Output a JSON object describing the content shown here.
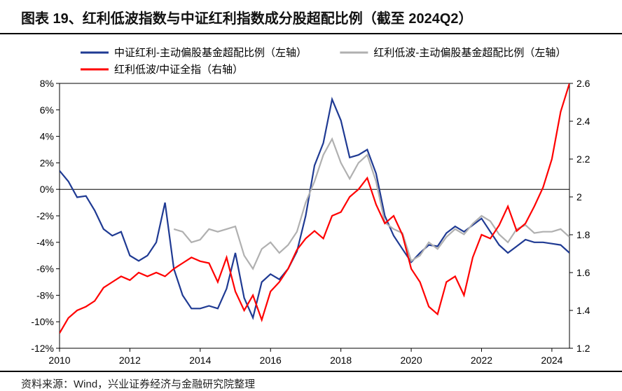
{
  "title": "图表 19、红利低波指数与中证红利指数成分股超配比例（截至 2024Q2）",
  "source": "资料来源：Wind，兴业证券经济与金融研究院整理",
  "chart": {
    "type": "line",
    "background_color": "#ffffff",
    "border_color": "#000000",
    "series": [
      {
        "name": "中证红利-主动偏股基金超配比例（左轴）",
        "color": "#1f3a93",
        "axis": "left",
        "width": 2.2,
        "data": [
          [
            2010.0,
            1.4
          ],
          [
            2010.25,
            0.6
          ],
          [
            2010.5,
            -0.6
          ],
          [
            2010.75,
            -0.5
          ],
          [
            2011.0,
            -1.6
          ],
          [
            2011.25,
            -3.0
          ],
          [
            2011.5,
            -3.5
          ],
          [
            2011.75,
            -3.2
          ],
          [
            2012.0,
            -5.0
          ],
          [
            2012.25,
            -5.4
          ],
          [
            2012.5,
            -5.0
          ],
          [
            2012.75,
            -4.0
          ],
          [
            2013.0,
            -1.0
          ],
          [
            2013.25,
            -6.0
          ],
          [
            2013.5,
            -8.0
          ],
          [
            2013.75,
            -9.0
          ],
          [
            2014.0,
            -9.0
          ],
          [
            2014.25,
            -8.8
          ],
          [
            2014.5,
            -9.0
          ],
          [
            2014.75,
            -7.5
          ],
          [
            2015.0,
            -4.8
          ],
          [
            2015.25,
            -8.2
          ],
          [
            2015.5,
            -9.7
          ],
          [
            2015.75,
            -7.0
          ],
          [
            2016.0,
            -6.4
          ],
          [
            2016.25,
            -6.8
          ],
          [
            2016.5,
            -6.0
          ],
          [
            2016.75,
            -4.7
          ],
          [
            2017.0,
            -2.0
          ],
          [
            2017.25,
            1.8
          ],
          [
            2017.5,
            3.5
          ],
          [
            2017.75,
            6.8
          ],
          [
            2018.0,
            5.2
          ],
          [
            2018.25,
            2.4
          ],
          [
            2018.5,
            2.6
          ],
          [
            2018.75,
            3.0
          ],
          [
            2019.0,
            1.2
          ],
          [
            2019.25,
            -2.0
          ],
          [
            2019.5,
            -3.5
          ],
          [
            2019.75,
            -4.5
          ],
          [
            2020.0,
            -5.5
          ],
          [
            2020.25,
            -4.8
          ],
          [
            2020.5,
            -4.2
          ],
          [
            2020.75,
            -4.3
          ],
          [
            2021.0,
            -3.3
          ],
          [
            2021.25,
            -2.8
          ],
          [
            2021.5,
            -3.2
          ],
          [
            2021.75,
            -2.7
          ],
          [
            2022.0,
            -2.2
          ],
          [
            2022.25,
            -3.2
          ],
          [
            2022.5,
            -4.2
          ],
          [
            2022.75,
            -4.8
          ],
          [
            2023.0,
            -4.3
          ],
          [
            2023.25,
            -3.8
          ],
          [
            2023.5,
            -4.0
          ],
          [
            2023.75,
            -4.0
          ],
          [
            2024.0,
            -4.1
          ],
          [
            2024.25,
            -4.2
          ],
          [
            2024.5,
            -4.8
          ]
        ]
      },
      {
        "name": "红利低波-主动偏股基金超配比例（左轴）",
        "color": "#b0b0b0",
        "axis": "left",
        "width": 2.2,
        "data": [
          [
            2013.25,
            -3.0
          ],
          [
            2013.5,
            -3.2
          ],
          [
            2013.75,
            -4.0
          ],
          [
            2014.0,
            -3.8
          ],
          [
            2014.25,
            -3.0
          ],
          [
            2014.5,
            -3.2
          ],
          [
            2014.75,
            -3.0
          ],
          [
            2015.0,
            -2.8
          ],
          [
            2015.25,
            -5.0
          ],
          [
            2015.5,
            -6.0
          ],
          [
            2015.75,
            -4.5
          ],
          [
            2016.0,
            -4.0
          ],
          [
            2016.25,
            -4.8
          ],
          [
            2016.5,
            -4.2
          ],
          [
            2016.75,
            -3.2
          ],
          [
            2017.0,
            -1.0
          ],
          [
            2017.25,
            0.6
          ],
          [
            2017.5,
            2.6
          ],
          [
            2017.75,
            3.8
          ],
          [
            2018.0,
            2.0
          ],
          [
            2018.25,
            0.8
          ],
          [
            2018.5,
            2.0
          ],
          [
            2018.75,
            2.6
          ],
          [
            2019.0,
            0.6
          ],
          [
            2019.25,
            -2.5
          ],
          [
            2019.5,
            -3.0
          ],
          [
            2019.75,
            -3.3
          ],
          [
            2020.0,
            -5.4
          ],
          [
            2020.25,
            -5.0
          ],
          [
            2020.5,
            -4.0
          ],
          [
            2020.75,
            -4.5
          ],
          [
            2021.0,
            -3.6
          ],
          [
            2021.25,
            -3.0
          ],
          [
            2021.5,
            -3.4
          ],
          [
            2021.75,
            -2.6
          ],
          [
            2022.0,
            -2.0
          ],
          [
            2022.25,
            -2.4
          ],
          [
            2022.5,
            -3.4
          ],
          [
            2022.75,
            -4.0
          ],
          [
            2023.0,
            -3.0
          ],
          [
            2023.25,
            -2.7
          ],
          [
            2023.5,
            -3.3
          ],
          [
            2023.75,
            -3.2
          ],
          [
            2024.0,
            -3.2
          ],
          [
            2024.25,
            -3.0
          ],
          [
            2024.5,
            -3.6
          ]
        ]
      },
      {
        "name": "红利低波/中证全指（右轴）",
        "color": "#ff0000",
        "axis": "right",
        "width": 2.2,
        "data": [
          [
            2010.0,
            1.28
          ],
          [
            2010.25,
            1.36
          ],
          [
            2010.5,
            1.4
          ],
          [
            2010.75,
            1.42
          ],
          [
            2011.0,
            1.45
          ],
          [
            2011.25,
            1.52
          ],
          [
            2011.5,
            1.55
          ],
          [
            2011.75,
            1.58
          ],
          [
            2012.0,
            1.56
          ],
          [
            2012.25,
            1.6
          ],
          [
            2012.5,
            1.58
          ],
          [
            2012.75,
            1.6
          ],
          [
            2013.0,
            1.58
          ],
          [
            2013.25,
            1.62
          ],
          [
            2013.5,
            1.65
          ],
          [
            2013.75,
            1.68
          ],
          [
            2014.0,
            1.66
          ],
          [
            2014.25,
            1.65
          ],
          [
            2014.5,
            1.55
          ],
          [
            2014.75,
            1.68
          ],
          [
            2015.0,
            1.5
          ],
          [
            2015.25,
            1.4
          ],
          [
            2015.5,
            1.48
          ],
          [
            2015.75,
            1.35
          ],
          [
            2016.0,
            1.5
          ],
          [
            2016.25,
            1.55
          ],
          [
            2016.5,
            1.62
          ],
          [
            2016.75,
            1.72
          ],
          [
            2017.0,
            1.78
          ],
          [
            2017.25,
            1.82
          ],
          [
            2017.5,
            1.78
          ],
          [
            2017.75,
            1.9
          ],
          [
            2018.0,
            1.92
          ],
          [
            2018.25,
            2.0
          ],
          [
            2018.5,
            2.04
          ],
          [
            2018.75,
            2.1
          ],
          [
            2019.0,
            1.96
          ],
          [
            2019.25,
            1.86
          ],
          [
            2019.5,
            1.9
          ],
          [
            2019.75,
            1.8
          ],
          [
            2020.0,
            1.62
          ],
          [
            2020.25,
            1.55
          ],
          [
            2020.5,
            1.42
          ],
          [
            2020.75,
            1.38
          ],
          [
            2021.0,
            1.55
          ],
          [
            2021.25,
            1.58
          ],
          [
            2021.5,
            1.48
          ],
          [
            2021.75,
            1.68
          ],
          [
            2022.0,
            1.8
          ],
          [
            2022.25,
            1.78
          ],
          [
            2022.5,
            1.85
          ],
          [
            2022.75,
            1.95
          ],
          [
            2023.0,
            1.82
          ],
          [
            2023.25,
            1.86
          ],
          [
            2023.5,
            1.95
          ],
          [
            2023.75,
            2.05
          ],
          [
            2024.0,
            2.2
          ],
          [
            2024.25,
            2.45
          ],
          [
            2024.5,
            2.6
          ]
        ]
      }
    ],
    "left_axis": {
      "min": -12,
      "max": 8,
      "step": 2,
      "format": "percent",
      "ticks": [
        -12,
        -10,
        -8,
        -6,
        -4,
        -2,
        0,
        2,
        4,
        6,
        8
      ]
    },
    "right_axis": {
      "min": 1.2,
      "max": 2.6,
      "step": 0.2,
      "format": "decimal",
      "ticks": [
        1.2,
        1.4,
        1.6,
        1.8,
        2,
        2.2,
        2.4,
        2.6
      ]
    },
    "x_axis": {
      "min": 2010,
      "max": 2024.5,
      "ticks": [
        2010,
        2012,
        2014,
        2016,
        2018,
        2020,
        2022,
        2024
      ]
    },
    "zero_line_y": 0,
    "label_fontsize": 14,
    "legend_fontsize": 15
  }
}
